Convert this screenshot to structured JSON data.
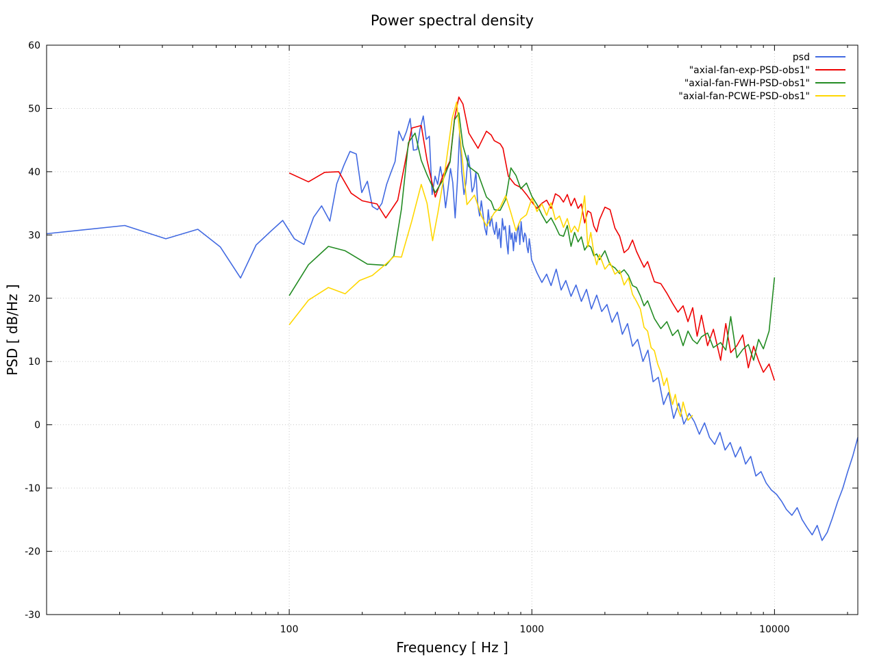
{
  "chart_data": {
    "type": "line",
    "title": "Power spectral density",
    "xlabel": "Frequency [ Hz ]",
    "ylabel": "PSD [ dB/Hz ]",
    "xscale": "log",
    "xlim": [
      10,
      22050
    ],
    "ylim": [
      -30,
      60
    ],
    "xticks": [
      100,
      1000,
      10000
    ],
    "xtick_labels": [
      "100",
      "1000",
      "10000"
    ],
    "yticks": [
      -30,
      -20,
      -10,
      0,
      10,
      20,
      30,
      40,
      50,
      60
    ],
    "ytick_labels": [
      "-30",
      "-20",
      "-10",
      "0",
      "10",
      "20",
      "30",
      "40",
      "50",
      "60"
    ],
    "grid": true,
    "legend_position": "top-right",
    "series": [
      {
        "name": "psd",
        "color": "#4169e1",
        "x": [
          10,
          21,
          31,
          42,
          52,
          63,
          73,
          84,
          94,
          105,
          115,
          126,
          136,
          147,
          157,
          168,
          178,
          189,
          199,
          210,
          220,
          231,
          241,
          252,
          262,
          273,
          283,
          294,
          304,
          315,
          325,
          336,
          346,
          357,
          367,
          378,
          388,
          399,
          409,
          420,
          430,
          441,
          451,
          462,
          472,
          483,
          493,
          504,
          514,
          525,
          535,
          546,
          556,
          567,
          577,
          588,
          598,
          609,
          619,
          630,
          640,
          651,
          661,
          672,
          682,
          693,
          703,
          714,
          724,
          735,
          745,
          756,
          766,
          777,
          787,
          798,
          808,
          819,
          829,
          840,
          850,
          861,
          871,
          882,
          892,
          903,
          913,
          924,
          934,
          945,
          955,
          966,
          976,
          987,
          997,
          1050,
          1100,
          1150,
          1200,
          1260,
          1320,
          1380,
          1450,
          1520,
          1600,
          1680,
          1760,
          1850,
          1940,
          2040,
          2140,
          2250,
          2360,
          2480,
          2600,
          2730,
          2870,
          3010,
          3160,
          3320,
          3490,
          3660,
          3840,
          4030,
          4230,
          4450,
          4670,
          4900,
          5150,
          5400,
          5670,
          5960,
          6260,
          6570,
          6900,
          7240,
          7600,
          7980,
          8380,
          8800,
          9240,
          9700,
          10200,
          10700,
          11200,
          11800,
          12400,
          13000,
          13600,
          14300,
          15000,
          15700,
          16500,
          17300,
          18200,
          19100,
          20000,
          21000,
          22050
        ],
        "y": [
          30.2,
          31.5,
          29.4,
          30.9,
          28.1,
          23.2,
          28.4,
          30.6,
          32.3,
          29.4,
          28.5,
          32.8,
          34.6,
          32.2,
          38.1,
          41.0,
          43.2,
          42.8,
          36.7,
          38.5,
          34.5,
          34.0,
          35.0,
          38.0,
          39.8,
          41.6,
          46.4,
          44.9,
          46.3,
          48.4,
          43.4,
          43.5,
          46.7,
          48.8,
          45.1,
          45.6,
          36.4,
          39.3,
          38.0,
          40.8,
          38.5,
          34.3,
          37.2,
          40.5,
          38.3,
          32.7,
          38.3,
          46.5,
          40.1,
          36.4,
          38.3,
          42.6,
          40.6,
          36.8,
          37.6,
          40.0,
          34.9,
          33.0,
          35.4,
          33.1,
          31.1,
          30.0,
          34.0,
          31.4,
          32.9,
          31.0,
          30.1,
          32.0,
          29.4,
          31.0,
          28.0,
          32.6,
          30.8,
          31.4,
          29.1,
          27.0,
          31.5,
          29.3,
          30.3,
          27.5,
          30.4,
          28.9,
          30.5,
          31.7,
          28.5,
          32.1,
          30.1,
          28.9,
          30.3,
          29.8,
          28.1,
          27.2,
          29.4,
          28.0,
          26.1,
          24.0,
          22.5,
          23.8,
          22.0,
          24.6,
          21.3,
          22.8,
          20.3,
          22.1,
          19.5,
          21.4,
          18.3,
          20.5,
          17.9,
          19.0,
          16.2,
          17.8,
          14.3,
          16.0,
          12.4,
          13.5,
          10.0,
          11.8,
          6.8,
          7.5,
          3.2,
          5.1,
          1.0,
          3.4,
          0.1,
          1.8,
          0.5,
          -1.5,
          0.3,
          -2.0,
          -3.1,
          -1.2,
          -4.0,
          -2.8,
          -5.1,
          -3.5,
          -6.2,
          -5.0,
          -8.1,
          -7.4,
          -9.2,
          -10.3,
          -11.0,
          -12.1,
          -13.4,
          -14.3,
          -13.1,
          -15.0,
          -16.2,
          -17.4,
          -15.9,
          -18.3,
          -17.0,
          -14.8,
          -12.2,
          -10.1,
          -7.5,
          -5.0,
          -2.0
        ]
      },
      {
        "name": "\"axial-fan-exp-PSD-obs1\"",
        "color": "#ee0000",
        "x": [
          100,
          120,
          140,
          160,
          180,
          200,
          230,
          250,
          280,
          320,
          350,
          370,
          400,
          430,
          460,
          480,
          500,
          520,
          550,
          600,
          650,
          680,
          700,
          740,
          760,
          800,
          850,
          900,
          950,
          1000,
          1050,
          1100,
          1150,
          1200,
          1250,
          1300,
          1350,
          1400,
          1450,
          1500,
          1550,
          1600,
          1650,
          1700,
          1750,
          1800,
          1850,
          1900,
          2000,
          2100,
          2200,
          2300,
          2400,
          2500,
          2600,
          2700,
          2800,
          2900,
          3000,
          3200,
          3400,
          3600,
          3800,
          4000,
          4200,
          4400,
          4600,
          4800,
          5000,
          5300,
          5600,
          6000,
          6300,
          6600,
          7000,
          7400,
          7800,
          8200,
          8600,
          9000,
          9500,
          10000
        ],
        "y": [
          39.8,
          38.4,
          39.9,
          40.0,
          36.6,
          35.4,
          34.9,
          32.7,
          35.5,
          46.9,
          47.3,
          41.8,
          36.0,
          39.4,
          41.7,
          48.4,
          51.8,
          50.7,
          46.1,
          43.7,
          46.4,
          45.8,
          44.9,
          44.4,
          43.7,
          39.3,
          38.0,
          37.5,
          36.4,
          35.2,
          34.2,
          35.0,
          35.5,
          34.2,
          36.5,
          36.1,
          35.2,
          36.4,
          34.6,
          35.8,
          34.2,
          34.9,
          31.9,
          33.8,
          33.5,
          31.4,
          30.5,
          32.4,
          34.4,
          34.0,
          31.1,
          29.8,
          27.2,
          27.8,
          29.2,
          27.4,
          26.1,
          24.9,
          25.8,
          22.6,
          22.3,
          20.8,
          19.2,
          17.8,
          18.8,
          16.3,
          18.5,
          14.0,
          17.3,
          12.5,
          15.1,
          10.2,
          16.0,
          11.4,
          12.5,
          14.2,
          9.0,
          12.4,
          10.1,
          8.3,
          9.6,
          7.0
        ]
      },
      {
        "name": "\"axial-fan-FWH-PSD-obs1\"",
        "color": "#228b22",
        "x": [
          100,
          120,
          145,
          170,
          210,
          250,
          270,
          290,
          310,
          330,
          350,
          370,
          400,
          430,
          460,
          480,
          500,
          520,
          550,
          600,
          650,
          680,
          700,
          740,
          780,
          820,
          860,
          900,
          950,
          1000,
          1050,
          1100,
          1150,
          1200,
          1250,
          1300,
          1350,
          1400,
          1450,
          1500,
          1550,
          1600,
          1650,
          1700,
          1750,
          1800,
          1850,
          1900,
          2000,
          2100,
          2200,
          2300,
          2400,
          2500,
          2600,
          2700,
          2800,
          2900,
          3000,
          3200,
          3400,
          3600,
          3800,
          4000,
          4200,
          4400,
          4600,
          4800,
          5000,
          5300,
          5600,
          6000,
          6300,
          6600,
          7000,
          7400,
          7800,
          8200,
          8600,
          9000,
          9500,
          10000
        ],
        "y": [
          20.4,
          25.3,
          28.2,
          27.5,
          25.4,
          25.2,
          26.7,
          34.1,
          44.6,
          46.1,
          41.8,
          39.5,
          36.7,
          38.7,
          41.5,
          48.2,
          49.3,
          44.1,
          40.8,
          39.7,
          36.0,
          35.3,
          34.0,
          33.9,
          35.6,
          40.6,
          39.4,
          37.3,
          38.2,
          36.1,
          34.8,
          33.2,
          31.9,
          32.7,
          31.4,
          30.0,
          29.8,
          31.5,
          28.2,
          30.4,
          28.9,
          29.7,
          27.6,
          28.4,
          28.1,
          26.7,
          27.0,
          26.1,
          27.5,
          25.3,
          24.8,
          23.9,
          24.5,
          23.6,
          22.0,
          21.7,
          20.4,
          18.8,
          19.6,
          16.8,
          15.2,
          16.3,
          14.1,
          15.0,
          12.5,
          14.8,
          13.4,
          12.8,
          13.9,
          14.5,
          12.2,
          13.0,
          11.8,
          17.1,
          10.6,
          11.9,
          12.7,
          10.2,
          13.5,
          12.0,
          14.8,
          23.3
        ]
      },
      {
        "name": "\"axial-fan-PCWE-PSD-obs1\"",
        "color": "#ffd700",
        "x": [
          100,
          120,
          145,
          170,
          195,
          220,
          250,
          270,
          290,
          320,
          350,
          370,
          390,
          410,
          440,
          470,
          490,
          510,
          540,
          580,
          620,
          650,
          700,
          740,
          780,
          820,
          860,
          900,
          950,
          1000,
          1050,
          1100,
          1150,
          1200,
          1250,
          1300,
          1350,
          1400,
          1450,
          1500,
          1550,
          1600,
          1650,
          1700,
          1750,
          1800,
          1850,
          1900,
          2000,
          2100,
          2200,
          2300,
          2400,
          2500,
          2600,
          2700,
          2800,
          2900,
          3000,
          3100,
          3200,
          3300,
          3400,
          3500,
          3600,
          3700,
          3800,
          3900,
          4000,
          4100,
          4200,
          4400,
          4600
        ],
        "y": [
          15.8,
          19.7,
          21.7,
          20.7,
          22.8,
          23.6,
          25.4,
          26.6,
          26.5,
          32.2,
          38.0,
          35.0,
          29.1,
          33.5,
          40.6,
          48.5,
          51.0,
          44.2,
          34.8,
          36.3,
          33.0,
          31.4,
          33.5,
          34.4,
          36.2,
          33.5,
          30.7,
          32.5,
          33.2,
          35.8,
          33.7,
          34.9,
          33.1,
          35.1,
          32.4,
          33.0,
          31.2,
          32.6,
          30.4,
          31.4,
          30.5,
          32.8,
          36.2,
          28.1,
          30.4,
          27.2,
          25.3,
          26.9,
          24.6,
          25.6,
          23.8,
          24.4,
          22.1,
          23.2,
          20.6,
          19.5,
          18.3,
          15.4,
          14.8,
          12.2,
          11.7,
          9.6,
          8.3,
          6.2,
          7.4,
          5.0,
          3.2,
          4.8,
          2.4,
          1.3,
          3.6,
          0.7,
          1.5
        ]
      }
    ]
  }
}
